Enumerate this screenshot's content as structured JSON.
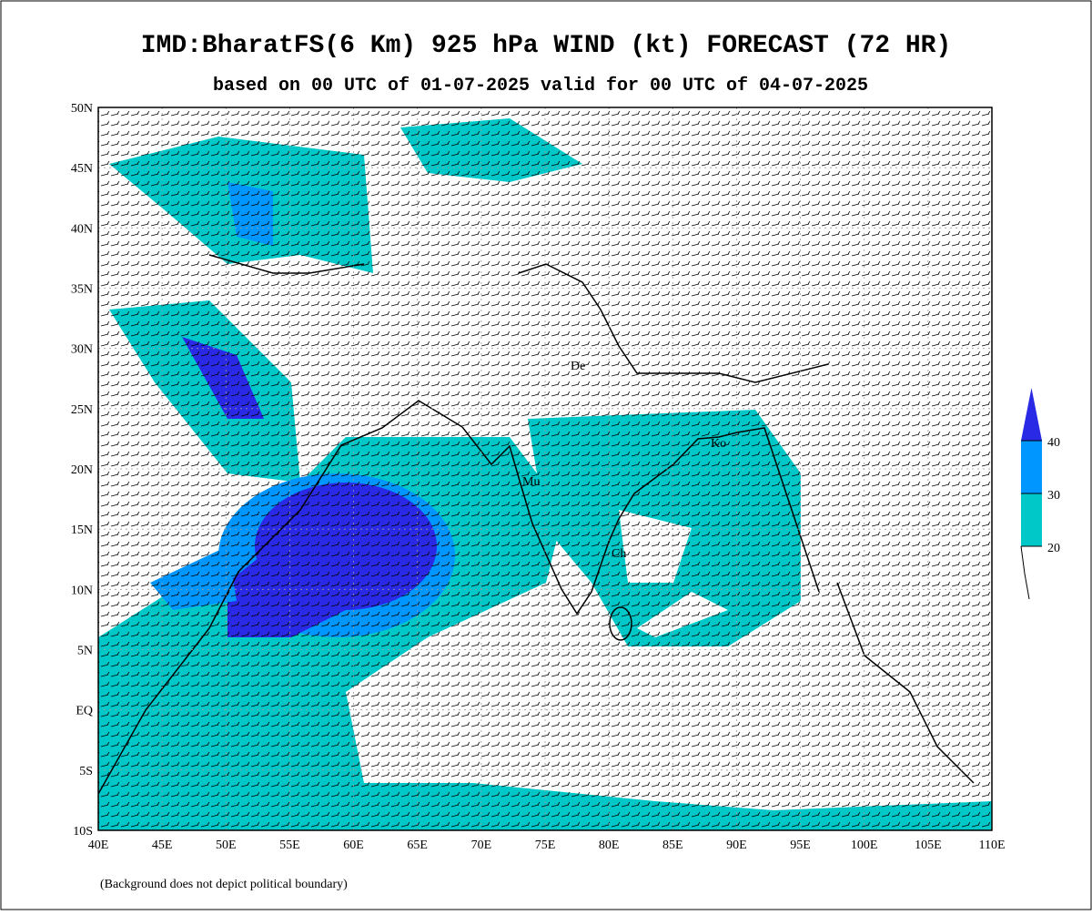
{
  "header": {
    "title": "IMD:BharatFS(6 Km) 925 hPa WIND (kt) FORECAST (72 HR)",
    "subtitle": "based on 00 UTC of 01-07-2025 valid for 00 UTC of 04-07-2025"
  },
  "map": {
    "lon_ticks": [
      {
        "value": 40,
        "label": "40E"
      },
      {
        "value": 45,
        "label": "45E"
      },
      {
        "value": 50,
        "label": "50E"
      },
      {
        "value": 55,
        "label": "55E"
      },
      {
        "value": 60,
        "label": "60E"
      },
      {
        "value": 65,
        "label": "65E"
      },
      {
        "value": 70,
        "label": "70E"
      },
      {
        "value": 75,
        "label": "75E"
      },
      {
        "value": 80,
        "label": "80E"
      },
      {
        "value": 85,
        "label": "85E"
      },
      {
        "value": 90,
        "label": "90E"
      },
      {
        "value": 95,
        "label": "95E"
      },
      {
        "value": 100,
        "label": "100E"
      },
      {
        "value": 105,
        "label": "105E"
      },
      {
        "value": 110,
        "label": "110E"
      }
    ],
    "lat_ticks": [
      {
        "value": -10,
        "label": "10S"
      },
      {
        "value": -5,
        "label": "5S"
      },
      {
        "value": 0,
        "label": "EQ"
      },
      {
        "value": 5,
        "label": "5N"
      },
      {
        "value": 10,
        "label": "10N"
      },
      {
        "value": 15,
        "label": "15N"
      },
      {
        "value": 20,
        "label": "20N"
      },
      {
        "value": 25,
        "label": "25N"
      },
      {
        "value": 30,
        "label": "30N"
      },
      {
        "value": 35,
        "label": "35N"
      },
      {
        "value": 40,
        "label": "40N"
      },
      {
        "value": 45,
        "label": "45N"
      },
      {
        "value": 50,
        "label": "50N"
      }
    ],
    "cities": [
      "De",
      "Mu",
      "Ch",
      "Ko"
    ]
  },
  "legend": {
    "levels": [
      20,
      30,
      40
    ],
    "colors": [
      "#00c8c8",
      "#0096ff",
      "#2a2ae6"
    ]
  },
  "footnote": "(Background does not depict political boundary)"
}
